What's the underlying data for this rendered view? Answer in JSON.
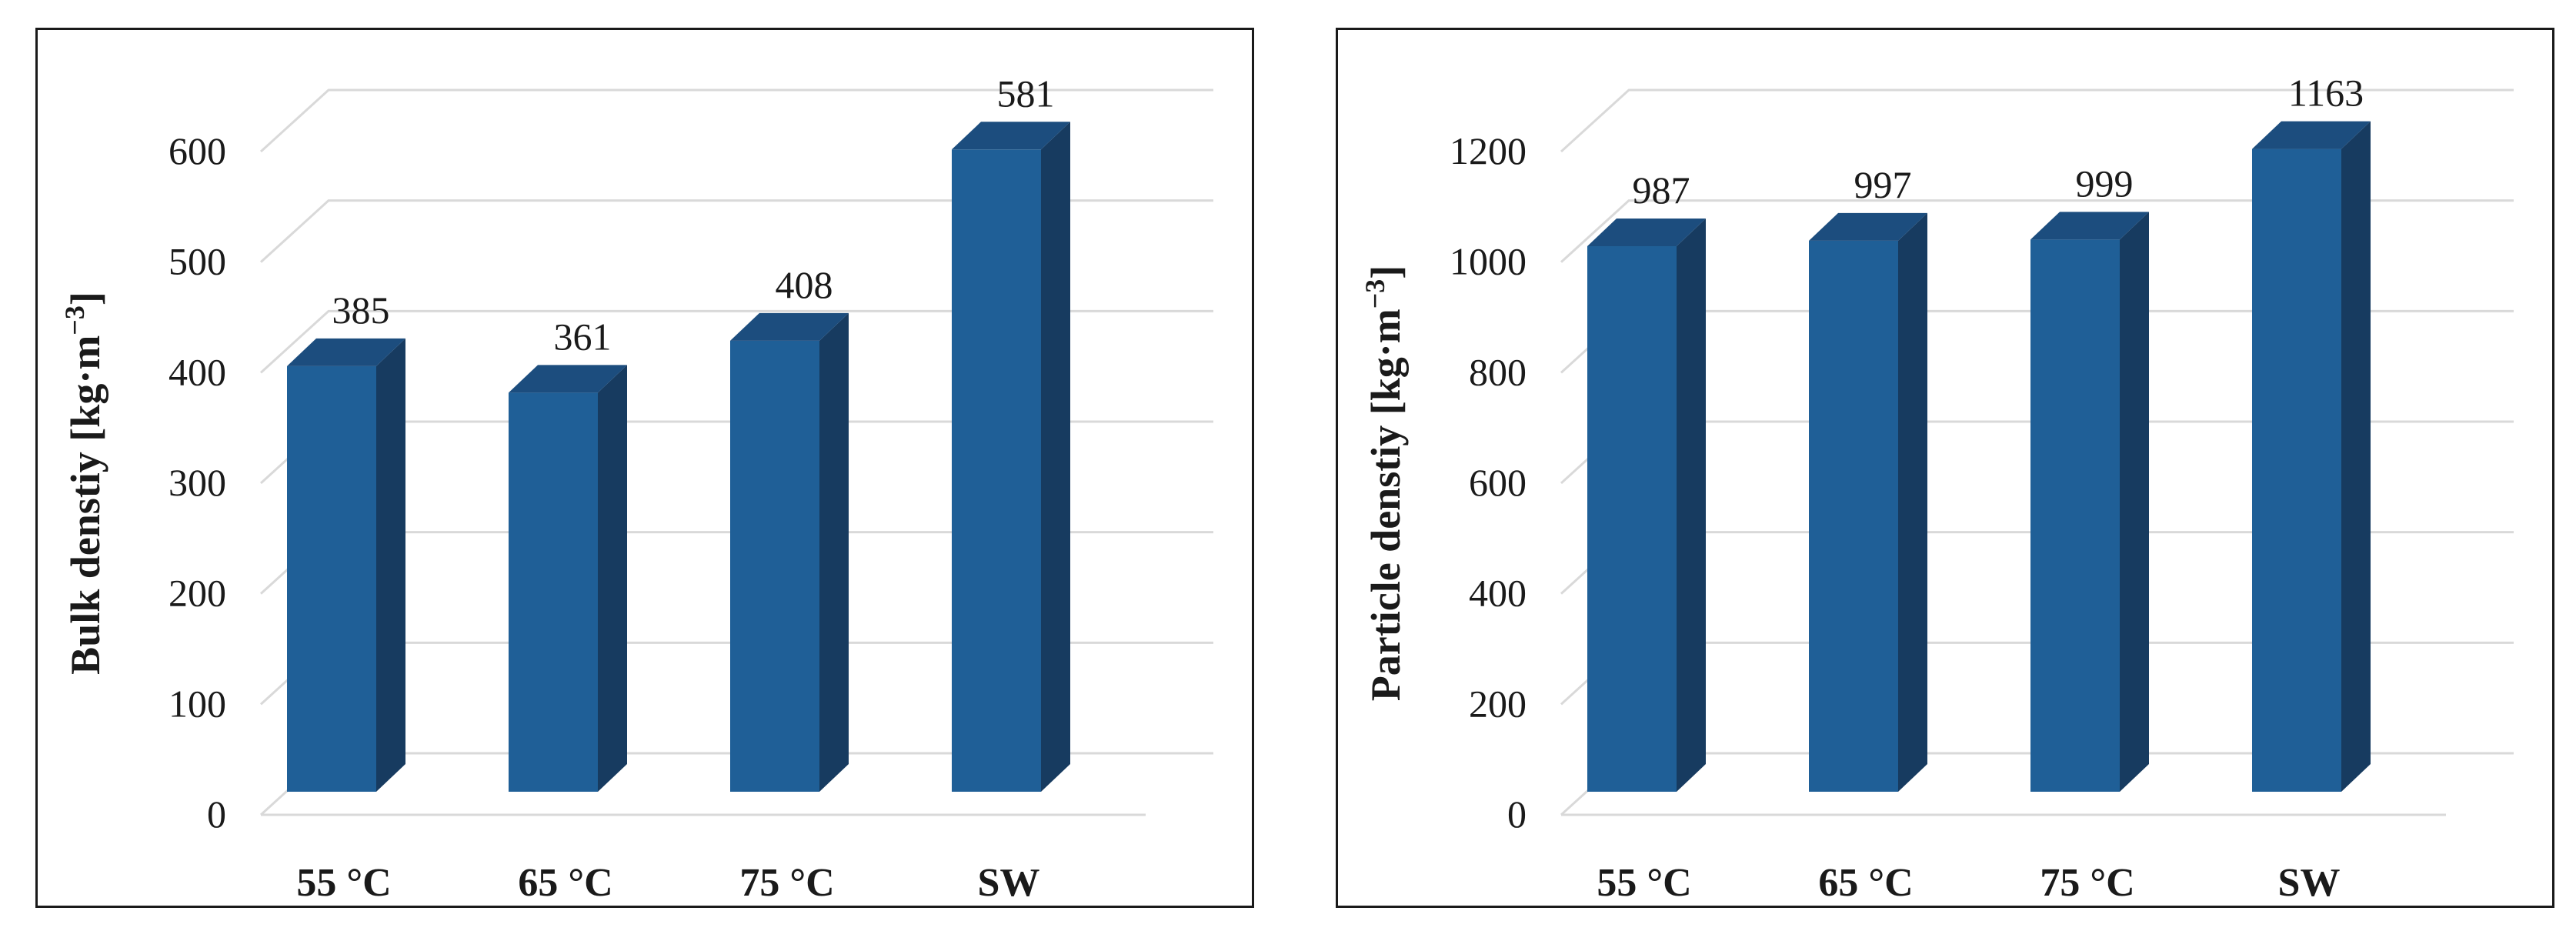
{
  "colors": {
    "bar_front": "#1f5f97",
    "bar_side": "#173b60",
    "bar_top": "#1c4d7e",
    "grid": "#d9d9d9"
  },
  "chart_data": [
    {
      "type": "bar",
      "categories": [
        "55 °C",
        "65 °C",
        "75 °C",
        "SW"
      ],
      "values": [
        385,
        361,
        408,
        581
      ],
      "data_labels": [
        "385",
        "361",
        "408",
        "581"
      ],
      "ylabel_main": "Bulk denstiy [kg·m",
      "ylabel_sup": "−3",
      "ylabel_end": "]",
      "ylim": [
        0,
        600
      ],
      "yticks": [
        0,
        100,
        200,
        300,
        400,
        500,
        600
      ],
      "grid": true,
      "style": "3d-column"
    },
    {
      "type": "bar",
      "categories": [
        "55 °C",
        "65 °C",
        "75 °C",
        "SW"
      ],
      "values": [
        987,
        997,
        999,
        1163
      ],
      "data_labels": [
        "987",
        "997",
        "999",
        "1163"
      ],
      "ylabel_main": "Particle denstiy [kg·m",
      "ylabel_sup": "−3",
      "ylabel_end": "]",
      "ylim": [
        0,
        1200
      ],
      "yticks": [
        0,
        200,
        400,
        600,
        800,
        1000,
        1200
      ],
      "grid": true,
      "style": "3d-column"
    }
  ]
}
